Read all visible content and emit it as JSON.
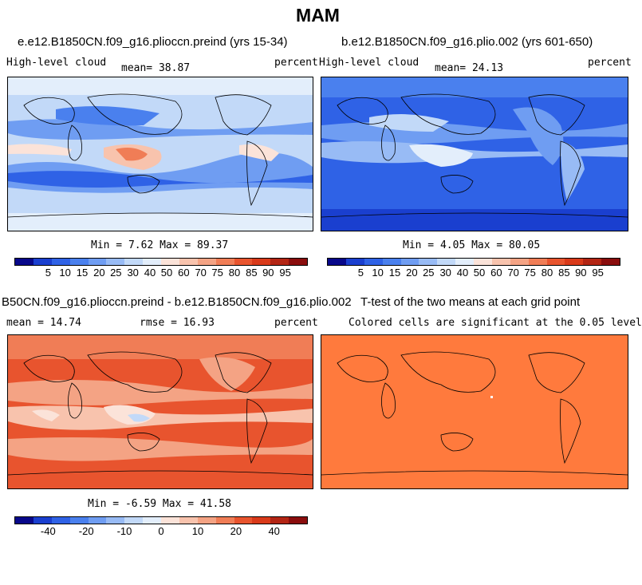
{
  "figure": {
    "season_title": "MAM"
  },
  "panels": [
    {
      "title": "e.e12.B1850CN.f09_g16.plioccn.preind (yrs 15-34)",
      "left_label": "High-level cloud",
      "mean_label": "mean=  38.87",
      "units": "percent",
      "minmax": "Min =   7.62 Max =  89.37"
    },
    {
      "title": "b.e12.B1850CN.f09_g16.plio.002 (yrs 601-650)",
      "left_label": "High-level cloud",
      "mean_label": "mean=  24.13",
      "units": "percent",
      "minmax": "Min =   4.05 Max =  80.05"
    },
    {
      "title": "B50CN.f09_g16.plioccn.preind - b.e12.B1850CN.f09_g16.plio.002",
      "mean_label": "mean =  14.74",
      "rmse_label": "rmse =  16.93",
      "units": "percent",
      "minmax": "Min =  -6.59 Max =  41.58"
    },
    {
      "title": "T-test of the two means at each grid point",
      "note": "Colored cells are significant at the 0.05 level"
    }
  ],
  "colorbar_abs": {
    "colors": [
      "#08088a",
      "#1a3fcf",
      "#2f62e6",
      "#4a80ee",
      "#6f9df2",
      "#98bbf5",
      "#c2d9f8",
      "#e3eefb",
      "#fbe3d9",
      "#f8c3ad",
      "#f4a384",
      "#f07d56",
      "#e8542e",
      "#d93a1a",
      "#b32514",
      "#8a0d0d"
    ],
    "labels": [
      "5",
      "10",
      "15",
      "20",
      "25",
      "30",
      "40",
      "50",
      "60",
      "70",
      "75",
      "80",
      "85",
      "90",
      "95"
    ]
  },
  "colorbar_diff": {
    "colors": [
      "#08088a",
      "#1a3fcf",
      "#2f62e6",
      "#4a80ee",
      "#6f9df2",
      "#98bbf5",
      "#c2d9f8",
      "#e3eefb",
      "#fbe3d9",
      "#f8c3ad",
      "#f4a384",
      "#f07d56",
      "#e8542e",
      "#d93a1a",
      "#b32514",
      "#8a0d0d"
    ],
    "labels": [
      "-40",
      "-20",
      "-10",
      "0",
      "10",
      "20",
      "40"
    ]
  }
}
